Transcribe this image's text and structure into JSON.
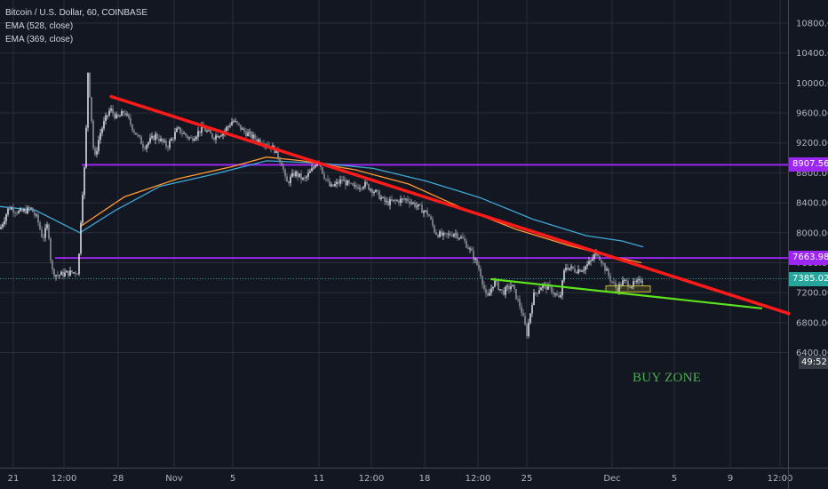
{
  "legend": {
    "title": "Bitcoin / U.S. Dollar, 60, COINBASE",
    "ema1": "EMA (528, close)",
    "ema2": "EMA (369, close)"
  },
  "annotation": {
    "buy_zone": "BUY ZONE"
  },
  "countdown": "49:52",
  "colors": {
    "background": "#131722",
    "grid": "#2a2e39",
    "axis_text": "#b2b5be",
    "trend_red": "#ff1a1a",
    "support_green": "#5ce31c",
    "horizontal_purple": "#9c27f0",
    "ema_orange": "#ff9830",
    "ema_blue": "#3fa8d8",
    "candle_up": "#d7dde3",
    "candle_down": "#8a8f98"
  },
  "chart_data": {
    "type": "candlestick",
    "title": "Bitcoin / U.S. Dollar, 60, COINBASE",
    "y_ticks": [
      "10800.00",
      "10400.00",
      "10000.00",
      "9600.00",
      "9200.00",
      "8800.00",
      "8400.00",
      "8000.00",
      "7600.00",
      "7200.00",
      "6800.00",
      "6400.00"
    ],
    "x_ticks": [
      "21",
      "12:00",
      "28",
      "Nov",
      "5",
      "11",
      "12:00",
      "18",
      "12:00",
      "25",
      "Dec",
      "5",
      "9",
      "12:00"
    ],
    "ylim": [
      6180,
      11000
    ],
    "price_tags": [
      {
        "label": "8907.56",
        "value": 8907.56,
        "color": "#9c27f0"
      },
      {
        "label": "7663.98",
        "value": 7663.98,
        "color": "#9c27f0"
      },
      {
        "label": "7385.02",
        "value": 7385.02,
        "color": "#26a69a"
      }
    ],
    "current_price": 7385.02,
    "horizontal_lines": [
      8907.56,
      7663.98
    ],
    "price_path": [
      {
        "x": 0,
        "y": 8050
      },
      {
        "x": 10,
        "y": 8340
      },
      {
        "x": 22,
        "y": 8270
      },
      {
        "x": 35,
        "y": 8320
      },
      {
        "x": 42,
        "y": 8180
      },
      {
        "x": 48,
        "y": 7920
      },
      {
        "x": 54,
        "y": 8120
      },
      {
        "x": 58,
        "y": 7500
      },
      {
        "x": 64,
        "y": 7430
      },
      {
        "x": 75,
        "y": 7460
      },
      {
        "x": 88,
        "y": 7480
      },
      {
        "x": 92,
        "y": 8400
      },
      {
        "x": 96,
        "y": 9000
      },
      {
        "x": 99,
        "y": 10150
      },
      {
        "x": 102,
        "y": 9700
      },
      {
        "x": 106,
        "y": 8950
      },
      {
        "x": 112,
        "y": 9300
      },
      {
        "x": 118,
        "y": 9500
      },
      {
        "x": 124,
        "y": 9650
      },
      {
        "x": 132,
        "y": 9520
      },
      {
        "x": 140,
        "y": 9620
      },
      {
        "x": 150,
        "y": 9380
      },
      {
        "x": 162,
        "y": 9150
      },
      {
        "x": 175,
        "y": 9300
      },
      {
        "x": 188,
        "y": 9150
      },
      {
        "x": 200,
        "y": 9380
      },
      {
        "x": 215,
        "y": 9250
      },
      {
        "x": 228,
        "y": 9400
      },
      {
        "x": 240,
        "y": 9280
      },
      {
        "x": 252,
        "y": 9350
      },
      {
        "x": 262,
        "y": 9500
      },
      {
        "x": 275,
        "y": 9350
      },
      {
        "x": 288,
        "y": 9250
      },
      {
        "x": 300,
        "y": 9200
      },
      {
        "x": 310,
        "y": 9100
      },
      {
        "x": 318,
        "y": 8900
      },
      {
        "x": 322,
        "y": 8650
      },
      {
        "x": 332,
        "y": 8800
      },
      {
        "x": 342,
        "y": 8700
      },
      {
        "x": 352,
        "y": 8850
      },
      {
        "x": 358,
        "y": 9000
      },
      {
        "x": 364,
        "y": 8780
      },
      {
        "x": 372,
        "y": 8600
      },
      {
        "x": 385,
        "y": 8700
      },
      {
        "x": 398,
        "y": 8600
      },
      {
        "x": 410,
        "y": 8650
      },
      {
        "x": 422,
        "y": 8550
      },
      {
        "x": 434,
        "y": 8400
      },
      {
        "x": 445,
        "y": 8420
      },
      {
        "x": 458,
        "y": 8450
      },
      {
        "x": 470,
        "y": 8350
      },
      {
        "x": 482,
        "y": 8250
      },
      {
        "x": 490,
        "y": 8000
      },
      {
        "x": 500,
        "y": 7950
      },
      {
        "x": 512,
        "y": 8000
      },
      {
        "x": 522,
        "y": 7900
      },
      {
        "x": 530,
        "y": 7750
      },
      {
        "x": 540,
        "y": 7500
      },
      {
        "x": 548,
        "y": 7100
      },
      {
        "x": 556,
        "y": 7350
      },
      {
        "x": 566,
        "y": 7200
      },
      {
        "x": 576,
        "y": 7300
      },
      {
        "x": 586,
        "y": 7000
      },
      {
        "x": 593,
        "y": 6650
      },
      {
        "x": 600,
        "y": 7150
      },
      {
        "x": 610,
        "y": 7300
      },
      {
        "x": 620,
        "y": 7250
      },
      {
        "x": 630,
        "y": 7100
      },
      {
        "x": 636,
        "y": 7550
      },
      {
        "x": 648,
        "y": 7500
      },
      {
        "x": 656,
        "y": 7520
      },
      {
        "x": 664,
        "y": 7600
      },
      {
        "x": 672,
        "y": 7750
      },
      {
        "x": 680,
        "y": 7550
      },
      {
        "x": 686,
        "y": 7400
      },
      {
        "x": 694,
        "y": 7250
      },
      {
        "x": 702,
        "y": 7350
      },
      {
        "x": 710,
        "y": 7300
      },
      {
        "x": 718,
        "y": 7330
      },
      {
        "x": 724,
        "y": 7400
      }
    ],
    "ema_528": [
      {
        "x": 0,
        "y": 8350
      },
      {
        "x": 40,
        "y": 8300
      },
      {
        "x": 90,
        "y": 8000
      },
      {
        "x": 130,
        "y": 8300
      },
      {
        "x": 180,
        "y": 8620
      },
      {
        "x": 240,
        "y": 8780
      },
      {
        "x": 300,
        "y": 8960
      },
      {
        "x": 360,
        "y": 8930
      },
      {
        "x": 420,
        "y": 8860
      },
      {
        "x": 480,
        "y": 8690
      },
      {
        "x": 540,
        "y": 8470
      },
      {
        "x": 600,
        "y": 8180
      },
      {
        "x": 660,
        "y": 7960
      },
      {
        "x": 700,
        "y": 7890
      },
      {
        "x": 724,
        "y": 7810
      }
    ],
    "ema_369": [
      {
        "x": 90,
        "y": 8080
      },
      {
        "x": 140,
        "y": 8480
      },
      {
        "x": 200,
        "y": 8720
      },
      {
        "x": 260,
        "y": 8880
      },
      {
        "x": 300,
        "y": 9010
      },
      {
        "x": 340,
        "y": 8960
      },
      {
        "x": 400,
        "y": 8840
      },
      {
        "x": 460,
        "y": 8650
      },
      {
        "x": 520,
        "y": 8330
      },
      {
        "x": 580,
        "y": 8050
      },
      {
        "x": 640,
        "y": 7830
      },
      {
        "x": 690,
        "y": 7680
      },
      {
        "x": 722,
        "y": 7600
      }
    ],
    "trendlines": [
      {
        "name": "resistance",
        "color": "#ff1a1a",
        "x1": 125,
        "y1": 9820,
        "x2": 888,
        "y2": 6920
      },
      {
        "name": "support",
        "color": "#5ce31c",
        "x1": 553,
        "y1": 7380,
        "x2": 857,
        "y2": 6990
      }
    ],
    "buy_zone_box": {
      "x1": 682,
      "x2": 732,
      "y_low": 7210,
      "y_high": 7290
    }
  }
}
